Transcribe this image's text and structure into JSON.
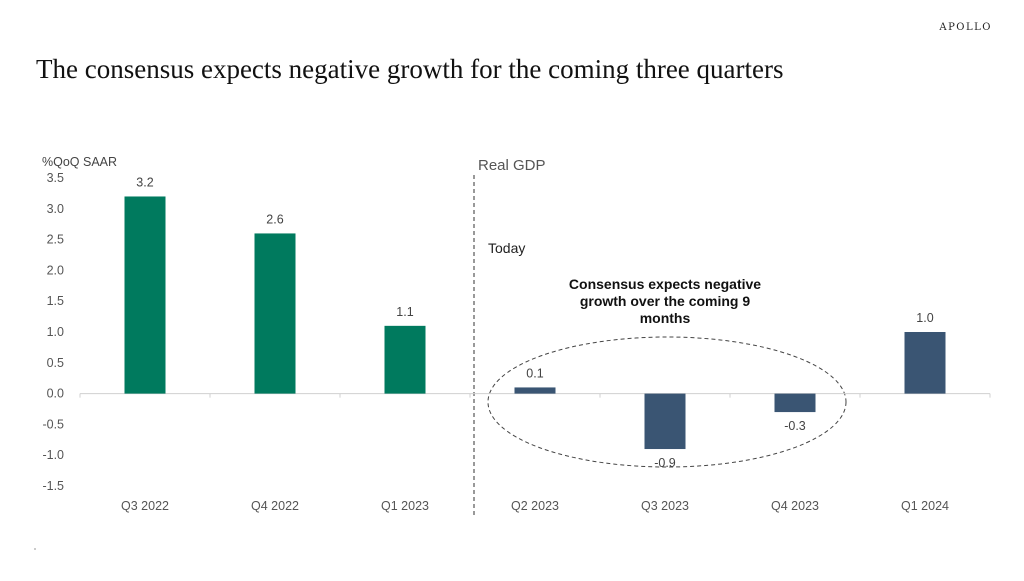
{
  "brand": "APOLLO",
  "title": "The consensus expects negative growth for the coming three quarters",
  "chart_data": {
    "type": "bar",
    "title": "Real GDP",
    "ylabel": "%QoQ SAAR",
    "ylim": [
      -1.5,
      3.5
    ],
    "yticks": [
      "3.5",
      "3.0",
      "2.5",
      "2.0",
      "1.5",
      "1.0",
      "0.5",
      "0.0",
      "-0.5",
      "-1.0",
      "-1.5"
    ],
    "categories": [
      "Q3 2022",
      "Q4 2022",
      "Q1 2023",
      "Q2 2023",
      "Q3 2023",
      "Q4 2023",
      "Q1 2024"
    ],
    "values": [
      3.2,
      2.6,
      1.1,
      0.1,
      -0.9,
      -0.3,
      1.0
    ],
    "data_labels": [
      "3.2",
      "2.6",
      "1.1",
      "0.1",
      "-0.9",
      "-0.3",
      "1.0"
    ],
    "colors": {
      "actual": "#007a5e",
      "forecast": "#3a5573"
    },
    "actual_count": 3,
    "grid": false,
    "annotations": {
      "today_label": "Today",
      "consensus_note": [
        "Consensus expects negative",
        "growth over the coming 9",
        "months"
      ]
    }
  }
}
